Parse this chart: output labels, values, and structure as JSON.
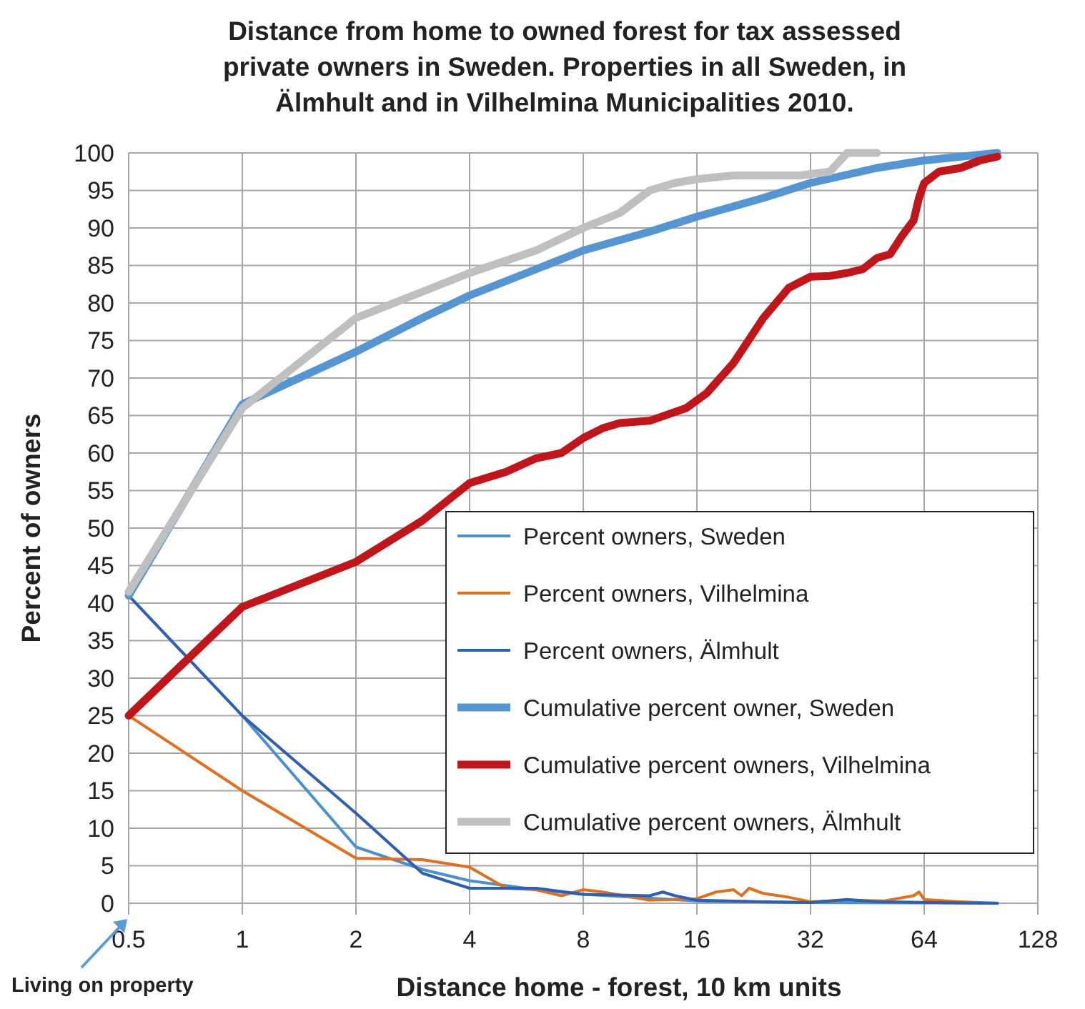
{
  "chart_data": {
    "type": "line",
    "title": "Distance from home to owned forest for tax assessed private owners in Sweden. Properties in all Sweden, in Älmhult and in Vilhelmina Municipalities 2010.",
    "xlabel": "Distance home - forest, 10 km units",
    "ylabel": "Percent of owners",
    "log": "x",
    "xlim": [
      0.5,
      128
    ],
    "xticks": [
      0.5,
      1,
      2,
      4,
      8,
      16,
      32,
      64,
      128
    ],
    "ylim": [
      0,
      100
    ],
    "yticks": [
      0,
      5,
      10,
      15,
      20,
      25,
      30,
      35,
      40,
      45,
      50,
      55,
      60,
      65,
      70,
      75,
      80,
      85,
      90,
      95,
      100
    ],
    "grid": true,
    "legend": "bottom right",
    "annotations": [
      "Living on property"
    ],
    "series": [
      {
        "name": "Percent owners, Sweden",
        "color": "#4a90d0",
        "x": [
          0.5,
          1,
          2,
          3,
          4,
          6,
          8,
          16,
          32,
          100
        ],
        "values": [
          41,
          25,
          7.5,
          4.5,
          3,
          1.8,
          1.2,
          0.3,
          0.1,
          0
        ]
      },
      {
        "name": "Percent owners, Vilhelmina",
        "color": "#e07020",
        "x": [
          0.5,
          1,
          2,
          3,
          4,
          5,
          6,
          7,
          8,
          9,
          12,
          16,
          18,
          20,
          21,
          22,
          24,
          28,
          32,
          40,
          50,
          60,
          62,
          64,
          80,
          100
        ],
        "values": [
          25,
          15,
          6,
          5.8,
          4.8,
          2,
          1.8,
          1,
          1.8,
          1.5,
          0.4,
          0.6,
          1.5,
          1.8,
          1,
          2,
          1.3,
          0.8,
          0.2,
          0.4,
          0.3,
          1,
          1.5,
          0.5,
          0.2,
          0
        ]
      },
      {
        "name": "Percent owners, Älmhult",
        "color": "#2f5fb0",
        "x": [
          0.5,
          1,
          2,
          3,
          4,
          6,
          8,
          12,
          13,
          14,
          16,
          24,
          32,
          40,
          48,
          100
        ],
        "values": [
          41,
          25,
          12,
          4,
          2,
          2,
          1.2,
          1,
          1.5,
          1,
          0.4,
          0.2,
          0.1,
          0.5,
          0.2,
          0
        ]
      },
      {
        "name": "Cumulative percent owner, Sweden",
        "color": "#5596d2",
        "x": [
          0.5,
          1,
          2,
          3,
          4,
          6,
          8,
          12,
          16,
          24,
          32,
          48,
          64,
          100
        ],
        "values": [
          41,
          66.5,
          73.5,
          78,
          81,
          84.5,
          87,
          89.5,
          91.5,
          94,
          96,
          98,
          99,
          100
        ]
      },
      {
        "name": "Cumulative percent owners, Vilhelmina",
        "color": "#c0161b",
        "x": [
          0.5,
          1,
          2,
          3,
          4,
          5,
          6,
          7,
          8,
          9,
          10,
          12,
          15,
          17,
          20,
          24,
          28,
          32,
          36,
          40,
          44,
          48,
          52,
          56,
          60,
          62,
          64,
          70,
          80,
          90,
          100
        ],
        "values": [
          25,
          39.5,
          45.5,
          51,
          56,
          57.5,
          59.3,
          60,
          62,
          63.3,
          64,
          64.3,
          66,
          68,
          72,
          78,
          82,
          83.5,
          83.6,
          84,
          84.5,
          86,
          86.5,
          89,
          91,
          94,
          96,
          97.5,
          98,
          99,
          99.5
        ]
      },
      {
        "name": "Cumulative percent owners, Älmhult",
        "color": "#bfbfbf",
        "x": [
          0.5,
          1,
          2,
          3,
          4,
          6,
          8,
          10,
          12,
          14,
          16,
          20,
          24,
          30,
          36,
          40,
          48
        ],
        "values": [
          41.5,
          66,
          78,
          81.5,
          84,
          87,
          90,
          92,
          95,
          96,
          96.5,
          97,
          97,
          97,
          97.5,
          100,
          100
        ]
      }
    ]
  }
}
